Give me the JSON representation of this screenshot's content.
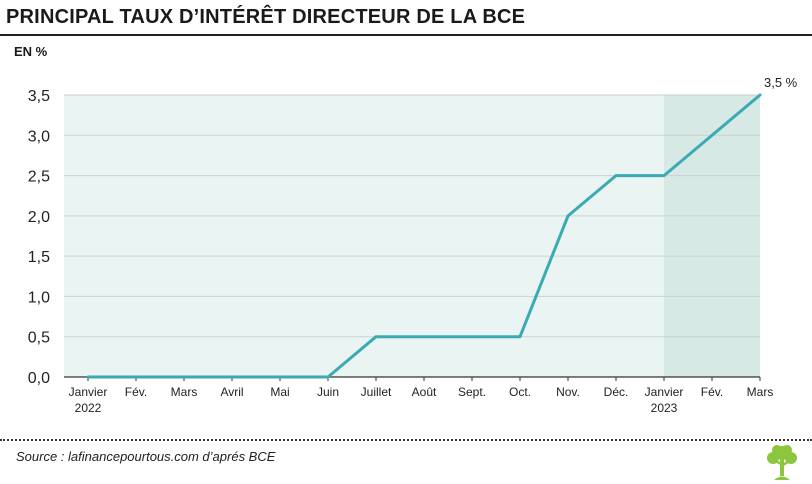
{
  "title": "PRINCIPAL TAUX D’INTÉRÊT DIRECTEUR DE LA BCE",
  "unit_label": "EN %",
  "source": "Source : lafinancepourtous.com d’aprés BCE",
  "colors": {
    "line": "#3aaab3",
    "plot_background": "#eaf4f2",
    "highlight_background": "#d6e9e4",
    "gridline": "#c9d3d0"
  },
  "logo": {
    "icon": "tree-icon",
    "color": "#8cc63f"
  },
  "chart_data": {
    "type": "line",
    "x": [
      "Janvier 2022",
      "Fév.",
      "Mars",
      "Avril",
      "Mai",
      "Juin",
      "Juillet",
      "Août",
      "Sept.",
      "Oct.",
      "Nov.",
      "Déc.",
      "Janvier 2023",
      "Fév.",
      "Mars"
    ],
    "x_tick_labels": [
      {
        "line1": "Janvier",
        "line2": "2022"
      },
      {
        "line1": "Fév.",
        "line2": ""
      },
      {
        "line1": "Mars",
        "line2": ""
      },
      {
        "line1": "Avril",
        "line2": ""
      },
      {
        "line1": "Mai",
        "line2": ""
      },
      {
        "line1": "Juin",
        "line2": ""
      },
      {
        "line1": "Juillet",
        "line2": ""
      },
      {
        "line1": "Août",
        "line2": ""
      },
      {
        "line1": "Sept.",
        "line2": ""
      },
      {
        "line1": "Oct.",
        "line2": ""
      },
      {
        "line1": "Nov.",
        "line2": ""
      },
      {
        "line1": "Déc.",
        "line2": ""
      },
      {
        "line1": "Janvier",
        "line2": "2023"
      },
      {
        "line1": "Fév.",
        "line2": ""
      },
      {
        "line1": "Mars",
        "line2": ""
      }
    ],
    "points": [
      {
        "x": "Janvier 2022",
        "y": 0.0
      },
      {
        "x": "Juin",
        "y": 0.0
      },
      {
        "x": "Juillet",
        "y": 0.5
      },
      {
        "x": "Oct.",
        "y": 0.5
      },
      {
        "x": "Nov.",
        "y": 2.0
      },
      {
        "x": "Déc.",
        "y": 2.5
      },
      {
        "x": "Janvier 2023",
        "y": 2.5
      },
      {
        "x": "Mars",
        "y": 3.5
      }
    ],
    "y_ticks": [
      0.0,
      0.5,
      1.0,
      1.5,
      2.0,
      2.5,
      3.0,
      3.5
    ],
    "y_tick_labels": [
      "0,0",
      "0,5",
      "1,0",
      "1,5",
      "2,0",
      "2,5",
      "3,0",
      "3,5"
    ],
    "ylim": [
      0,
      3.5
    ],
    "highlight_range": [
      "Janvier 2023",
      "Mars"
    ],
    "end_label": "3,5 %",
    "grid": true
  }
}
